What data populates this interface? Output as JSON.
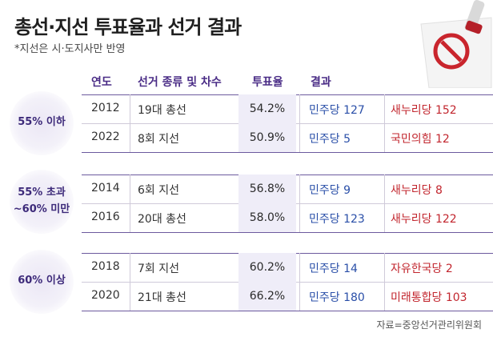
{
  "title": "총선·지선 투표율과 선거 결과",
  "subtitle": "*지선은 시·도지사만 반영",
  "headers": {
    "year": "연도",
    "type": "선거 종류 및 차수",
    "turnout": "투표율",
    "result": "결과"
  },
  "groups": [
    {
      "label_line1": "55% 이하",
      "label_line2": "",
      "rows": [
        {
          "year": "2012",
          "type": "19대 총선",
          "turnout": "54.2%",
          "dem": "민주당 127",
          "con": "새누리당 152"
        },
        {
          "year": "2022",
          "type": "8회 지선",
          "turnout": "50.9%",
          "dem": "민주당 5",
          "con": "국민의힘 12"
        }
      ]
    },
    {
      "label_line1": "55% 초과",
      "label_line2": "~60% 미만",
      "rows": [
        {
          "year": "2014",
          "type": "6회 지선",
          "turnout": "56.8%",
          "dem": "민주당 9",
          "con": "새누리당 8"
        },
        {
          "year": "2016",
          "type": "20대 총선",
          "turnout": "58.0%",
          "dem": "민주당 123",
          "con": "새누리당 122"
        }
      ]
    },
    {
      "label_line1": "60% 이상",
      "label_line2": "",
      "rows": [
        {
          "year": "2018",
          "type": "7회 지선",
          "turnout": "60.2%",
          "dem": "민주당 14",
          "con": "자유한국당 2"
        },
        {
          "year": "2020",
          "type": "21대 총선",
          "turnout": "66.2%",
          "dem": "민주당 180",
          "con": "미래통합당 103"
        }
      ]
    }
  ],
  "source": "자료=중앙선거관리위원회",
  "colors": {
    "accent": "#4a2c86",
    "democratic": "#2a4fa8",
    "conservative": "#c2262e",
    "turnout_bg": "#efedf8"
  },
  "illustration": "ballot-stamp-icon"
}
